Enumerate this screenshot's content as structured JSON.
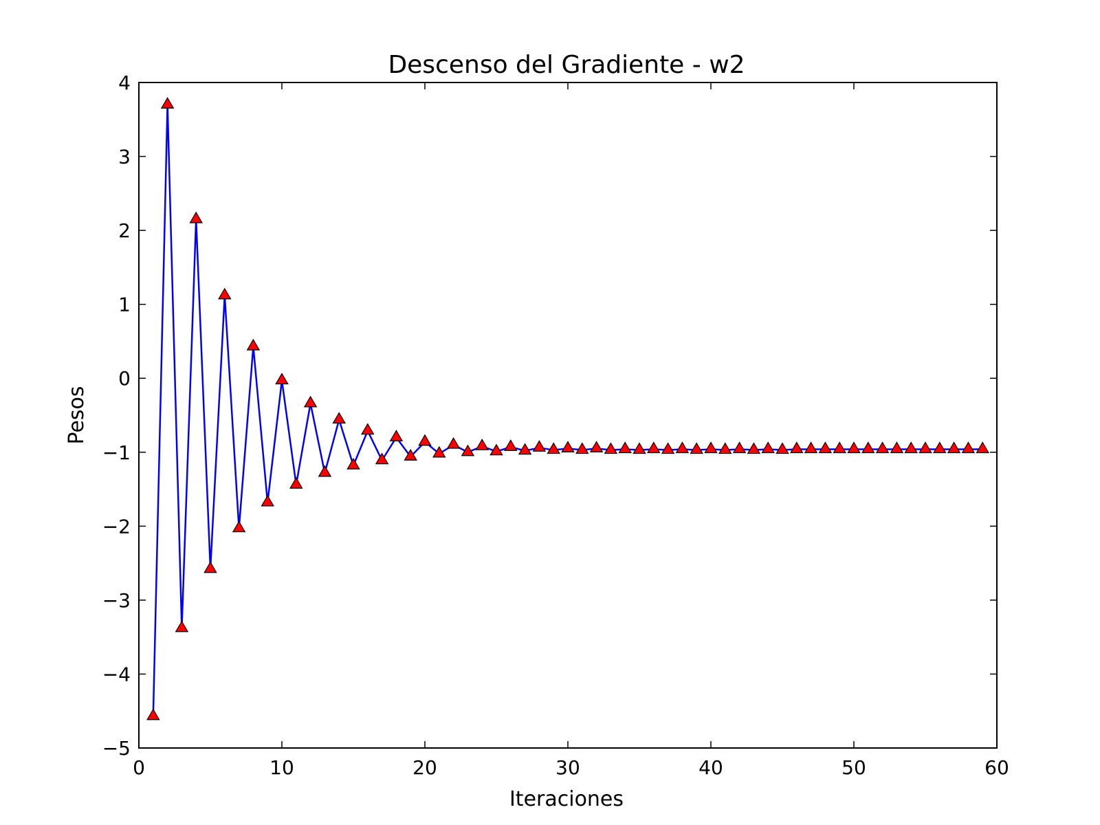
{
  "chart_data": {
    "type": "line",
    "title": "Descenso del Gradiente - w2",
    "xlabel": "Iteraciones",
    "ylabel": "Pesos",
    "xlim": [
      0,
      60
    ],
    "ylim": [
      -5,
      4
    ],
    "xticks": [
      0,
      10,
      20,
      30,
      40,
      50,
      60
    ],
    "yticks": [
      4,
      3,
      2,
      1,
      0,
      -1,
      -2,
      -3,
      -4,
      -5
    ],
    "xtick_labels": [
      "0",
      "10",
      "20",
      "30",
      "40",
      "50",
      "60"
    ],
    "ytick_labels": [
      "4",
      "3",
      "2",
      "1",
      "0",
      "−1",
      "−2",
      "−3",
      "−4",
      "−5"
    ],
    "grid": false,
    "line_color": "#0000ff",
    "marker": "triangle",
    "marker_color": "#ff0000",
    "marker_edge_color": "#000000",
    "series": [
      {
        "x": [
          1,
          2,
          3,
          4,
          5,
          6,
          7,
          8,
          9,
          10,
          11,
          12,
          13,
          14,
          15,
          16,
          17,
          18,
          19,
          20,
          21,
          22,
          23,
          24,
          25,
          26,
          27,
          28,
          29,
          30,
          31,
          32,
          33,
          34,
          35,
          36,
          37,
          38,
          39,
          40,
          41,
          42,
          43,
          44,
          45,
          46,
          47,
          48,
          49,
          50,
          51,
          52,
          53,
          54,
          55,
          56,
          57,
          58,
          59
        ],
        "values": [
          -4.57,
          3.7,
          -3.38,
          2.15,
          -2.58,
          1.12,
          -2.03,
          0.43,
          -1.68,
          -0.03,
          -1.44,
          -0.34,
          -1.28,
          -0.56,
          -1.18,
          -0.71,
          -1.11,
          -0.8,
          -1.06,
          -0.86,
          -1.02,
          -0.9,
          -1.0,
          -0.92,
          -0.99,
          -0.93,
          -0.98,
          -0.94,
          -0.97,
          -0.95,
          -0.97,
          -0.95,
          -0.97,
          -0.96,
          -0.97,
          -0.96,
          -0.97,
          -0.96,
          -0.97,
          -0.96,
          -0.97,
          -0.96,
          -0.97,
          -0.96,
          -0.97,
          -0.96,
          -0.96,
          -0.96,
          -0.96,
          -0.96,
          -0.96,
          -0.96,
          -0.96,
          -0.96,
          -0.96,
          -0.96,
          -0.96,
          -0.96,
          -0.96
        ]
      }
    ]
  }
}
